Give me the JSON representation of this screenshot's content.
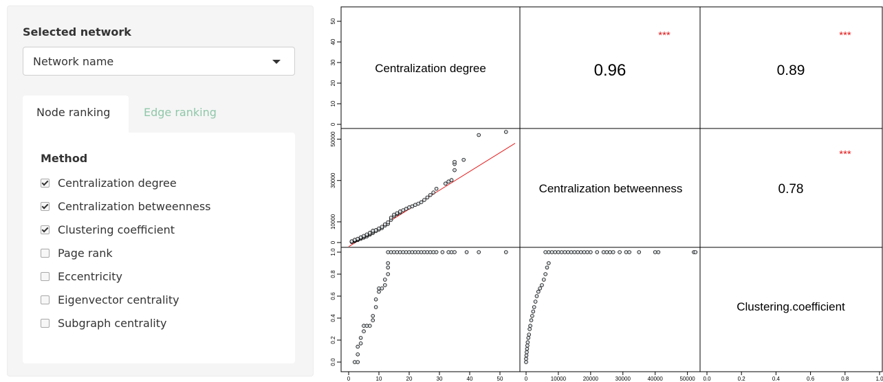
{
  "sidebar": {
    "selected_network_label": "Selected network",
    "network_select_value": "Network name",
    "tabs": [
      {
        "label": "Node ranking",
        "active": true
      },
      {
        "label": "Edge ranking",
        "active": false
      }
    ],
    "method_title": "Method",
    "methods": [
      {
        "label": "Centralization degree",
        "checked": true
      },
      {
        "label": "Centralization betweenness",
        "checked": true
      },
      {
        "label": "Clustering coefficient",
        "checked": true
      },
      {
        "label": "Page rank",
        "checked": false
      },
      {
        "label": "Eccentricity",
        "checked": false
      },
      {
        "label": "Eigenvector centrality",
        "checked": false
      },
      {
        "label": "Subgraph centrality",
        "checked": false
      }
    ],
    "colors": {
      "tab_inactive": "#8fc7a9",
      "stars": "#e41a1c",
      "fit_line": "#e41a1c"
    }
  },
  "chart_data": {
    "type": "scatter",
    "variables": [
      "Centralization degree",
      "Centralization betweenness",
      "Clustering.coefficient"
    ],
    "correlations": [
      {
        "pair": [
          "Centralization degree",
          "Centralization betweenness"
        ],
        "value": "0.96",
        "stars": "***"
      },
      {
        "pair": [
          "Centralization degree",
          "Clustering.coefficient"
        ],
        "value": "0.89",
        "stars": "***"
      },
      {
        "pair": [
          "Centralization betweenness",
          "Clustering.coefficient"
        ],
        "value": "0.78",
        "stars": "***"
      }
    ],
    "axes": {
      "degree": {
        "range": [
          0,
          55
        ],
        "ticks": [
          0,
          10,
          20,
          30,
          40,
          50
        ],
        "tick_labels": [
          "0",
          "10",
          "20",
          "30",
          "40",
          "50"
        ]
      },
      "betweenness": {
        "range": [
          0,
          55000
        ],
        "ticks": [
          0,
          10000,
          20000,
          30000,
          40000,
          50000
        ],
        "tick_labels": [
          "0",
          "10000",
          "20000",
          "30000",
          "40000",
          "50000"
        ]
      },
      "betweenness_left": {
        "ticks": [
          0,
          10000,
          30000,
          50000
        ],
        "tick_labels": [
          "0",
          "10000",
          "30000",
          "50000"
        ]
      },
      "clustering": {
        "range": [
          0,
          1
        ],
        "ticks": [
          0,
          0.2,
          0.4,
          0.6,
          0.8,
          1.0
        ],
        "tick_labels": [
          "0.0",
          "0.2",
          "0.4",
          "0.6",
          "0.8",
          "1.0"
        ]
      }
    },
    "fit_line_betweenness_vs_degree": {
      "x": [
        0,
        55
      ],
      "y": [
        -2000,
        48000
      ]
    },
    "points_betweenness_vs_degree": [
      [
        1,
        300
      ],
      [
        1,
        600
      ],
      [
        2,
        700
      ],
      [
        2,
        1000
      ],
      [
        2,
        1300
      ],
      [
        3,
        1200
      ],
      [
        3,
        1500
      ],
      [
        3,
        1800
      ],
      [
        4,
        1800
      ],
      [
        4,
        2200
      ],
      [
        4,
        2500
      ],
      [
        5,
        2400
      ],
      [
        5,
        2800
      ],
      [
        5,
        3200
      ],
      [
        6,
        3000
      ],
      [
        6,
        3500
      ],
      [
        6,
        3900
      ],
      [
        7,
        3800
      ],
      [
        7,
        4200
      ],
      [
        7,
        4700
      ],
      [
        8,
        4600
      ],
      [
        8,
        5200
      ],
      [
        8,
        5700
      ],
      [
        9,
        5500
      ],
      [
        9,
        6000
      ],
      [
        10,
        6300
      ],
      [
        10,
        6800
      ],
      [
        11,
        7000
      ],
      [
        11,
        7600
      ],
      [
        12,
        8200
      ],
      [
        12,
        8800
      ],
      [
        13,
        9000
      ],
      [
        13,
        9800
      ],
      [
        14,
        11000
      ],
      [
        14,
        12000
      ],
      [
        15,
        12800
      ],
      [
        15,
        13500
      ],
      [
        16,
        13800
      ],
      [
        16,
        14200
      ],
      [
        17,
        14500
      ],
      [
        17,
        15000
      ],
      [
        18,
        15600
      ],
      [
        19,
        16300
      ],
      [
        20,
        17000
      ],
      [
        21,
        17500
      ],
      [
        22,
        18200
      ],
      [
        23,
        18800
      ],
      [
        24,
        19500
      ],
      [
        25,
        20600
      ],
      [
        26,
        21800
      ],
      [
        27,
        23000
      ],
      [
        28,
        24200
      ],
      [
        29,
        26000
      ],
      [
        32,
        28500
      ],
      [
        33,
        29500
      ],
      [
        34,
        30200
      ],
      [
        35,
        35000
      ],
      [
        35,
        38000
      ],
      [
        35,
        39000
      ],
      [
        38,
        40000
      ],
      [
        43,
        52000
      ],
      [
        52,
        53500
      ]
    ],
    "points_clustering_vs_degree": [
      [
        2,
        0.0
      ],
      [
        3,
        0.0
      ],
      [
        3,
        0.07
      ],
      [
        3,
        0.14
      ],
      [
        4,
        0.17
      ],
      [
        4,
        0.22
      ],
      [
        5,
        0.28
      ],
      [
        5,
        0.33
      ],
      [
        6,
        0.33
      ],
      [
        7,
        0.33
      ],
      [
        8,
        0.38
      ],
      [
        8,
        0.42
      ],
      [
        9,
        0.5
      ],
      [
        9,
        0.57
      ],
      [
        10,
        0.64
      ],
      [
        10,
        0.67
      ],
      [
        11,
        0.67
      ],
      [
        12,
        0.7
      ],
      [
        12,
        0.75
      ],
      [
        13,
        0.8
      ],
      [
        13,
        0.86
      ],
      [
        13,
        0.9
      ],
      [
        13,
        1.0
      ],
      [
        14,
        1.0
      ],
      [
        15,
        1.0
      ],
      [
        16,
        1.0
      ],
      [
        17,
        1.0
      ],
      [
        18,
        1.0
      ],
      [
        19,
        1.0
      ],
      [
        20,
        1.0
      ],
      [
        21,
        1.0
      ],
      [
        22,
        1.0
      ],
      [
        23,
        1.0
      ],
      [
        24,
        1.0
      ],
      [
        25,
        1.0
      ],
      [
        26,
        1.0
      ],
      [
        27,
        1.0
      ],
      [
        28,
        1.0
      ],
      [
        29,
        1.0
      ],
      [
        31,
        1.0
      ],
      [
        33,
        1.0
      ],
      [
        34,
        1.0
      ],
      [
        35,
        1.0
      ],
      [
        39,
        1.0
      ],
      [
        43,
        1.0
      ],
      [
        52,
        1.0
      ]
    ],
    "points_clustering_vs_betweenness": [
      [
        0,
        0.0
      ],
      [
        0,
        0.03
      ],
      [
        100,
        0.06
      ],
      [
        200,
        0.09
      ],
      [
        300,
        0.12
      ],
      [
        400,
        0.15
      ],
      [
        500,
        0.18
      ],
      [
        700,
        0.22
      ],
      [
        900,
        0.25
      ],
      [
        1100,
        0.3
      ],
      [
        1300,
        0.33
      ],
      [
        1600,
        0.38
      ],
      [
        1900,
        0.42
      ],
      [
        2200,
        0.46
      ],
      [
        2500,
        0.5
      ],
      [
        2900,
        0.55
      ],
      [
        3300,
        0.6
      ],
      [
        3800,
        0.64
      ],
      [
        4300,
        0.67
      ],
      [
        4900,
        0.7
      ],
      [
        5500,
        0.75
      ],
      [
        6000,
        0.8
      ],
      [
        6500,
        0.86
      ],
      [
        7000,
        0.9
      ],
      [
        6000,
        1.0
      ],
      [
        7000,
        1.0
      ],
      [
        8000,
        1.0
      ],
      [
        9000,
        1.0
      ],
      [
        10000,
        1.0
      ],
      [
        11000,
        1.0
      ],
      [
        12000,
        1.0
      ],
      [
        13000,
        1.0
      ],
      [
        14000,
        1.0
      ],
      [
        15000,
        1.0
      ],
      [
        16000,
        1.0
      ],
      [
        17000,
        1.0
      ],
      [
        18000,
        1.0
      ],
      [
        19000,
        1.0
      ],
      [
        20000,
        1.0
      ],
      [
        22000,
        1.0
      ],
      [
        24000,
        1.0
      ],
      [
        25000,
        1.0
      ],
      [
        26000,
        1.0
      ],
      [
        27000,
        1.0
      ],
      [
        29000,
        1.0
      ],
      [
        31000,
        1.0
      ],
      [
        32000,
        1.0
      ],
      [
        35000,
        1.0
      ],
      [
        40000,
        1.0
      ],
      [
        41000,
        1.0
      ],
      [
        52000,
        1.0
      ],
      [
        52500,
        1.0
      ]
    ]
  }
}
